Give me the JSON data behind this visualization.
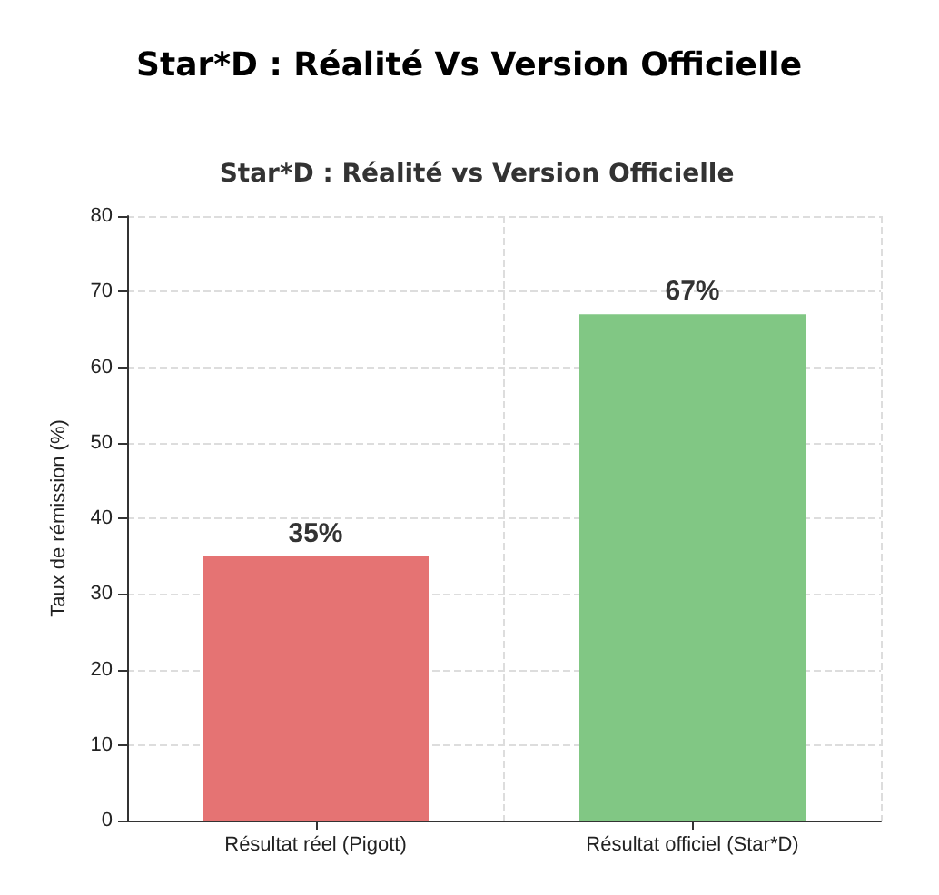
{
  "chart_data": {
    "type": "bar",
    "title": "Star*D : Réalité Vs Version Officielle",
    "subtitle": "Star*D : Réalité vs Version Officielle",
    "categories": [
      "Résultat réel (Pigott)",
      "Résultat officiel (Star*D)"
    ],
    "values": [
      35,
      67
    ],
    "colors": [
      "#e57373",
      "#81c784"
    ],
    "value_labels": [
      "35%",
      "67%"
    ],
    "ylabel": "Taux de rémission (%)",
    "ylim": [
      0,
      80
    ],
    "yticks": [
      0,
      10,
      20,
      30,
      40,
      50,
      60,
      70,
      80
    ],
    "grid": true
  }
}
